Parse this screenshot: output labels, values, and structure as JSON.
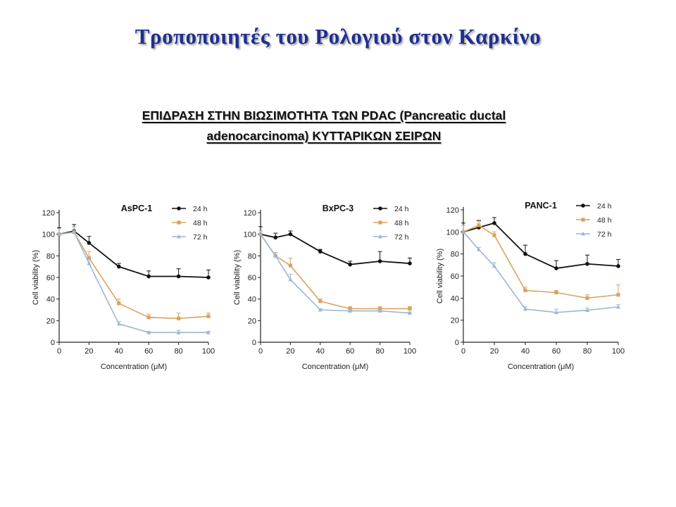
{
  "slide": {
    "title": "Τροποποιητές του Ρολογιού στον Καρκίνο",
    "subtitle_line1": "ΕΠΙΔΡΑΣΗ ΣΤΗΝ ΒΙΩΣΙΜΟΤΗΤΑ ΤΩΝ PDAC (Pancreatic ductal",
    "subtitle_line2": "adenocarcinoma) ΚΥΤΤΑΡΙΚΩΝ ΣΕΙΡΩΝ"
  },
  "colors": {
    "24h": "#111111",
    "48h": "#d9a35f",
    "72h": "#9db6d4",
    "title": "#1f2f8f"
  },
  "chart_data": [
    {
      "type": "line",
      "title": "AsPC-1",
      "xlabel": "Concentration (μM)",
      "ylabel": "Cell viability (%)",
      "x": [
        0,
        10,
        20,
        40,
        60,
        80,
        100
      ],
      "xticks": [
        0,
        20,
        40,
        60,
        80,
        100
      ],
      "yticks": [
        0,
        20,
        40,
        60,
        80,
        100,
        120
      ],
      "xlim": [
        0,
        100
      ],
      "ylim": [
        0,
        120
      ],
      "legend_position": "top-right",
      "series": [
        {
          "name": "24 h",
          "marker": "circle",
          "values": [
            100,
            103,
            92,
            70,
            61,
            61,
            60
          ],
          "errors": [
            6,
            6,
            6,
            3,
            5,
            7,
            7
          ]
        },
        {
          "name": "48 h",
          "marker": "square",
          "values": [
            100,
            102,
            78,
            36,
            23,
            22,
            24
          ],
          "errors": [
            5,
            5,
            6,
            4,
            3,
            5,
            3
          ]
        },
        {
          "name": "72 h",
          "marker": "triangle",
          "values": [
            100,
            102,
            73,
            17,
            9,
            9,
            9
          ],
          "errors": [
            5,
            5,
            5,
            2,
            1,
            2,
            1
          ]
        }
      ]
    },
    {
      "type": "line",
      "title": "BxPC-3",
      "xlabel": "Concentration (μM)",
      "ylabel": "Cell viability (%)",
      "x": [
        0,
        10,
        20,
        40,
        60,
        80,
        100
      ],
      "xticks": [
        0,
        20,
        40,
        60,
        80,
        100
      ],
      "yticks": [
        0,
        20,
        40,
        60,
        80,
        100,
        120
      ],
      "xlim": [
        0,
        100
      ],
      "ylim": [
        0,
        120
      ],
      "legend_position": "top-right",
      "series": [
        {
          "name": "24 h",
          "marker": "circle",
          "values": [
            100,
            97,
            100,
            84,
            72,
            75,
            73
          ],
          "errors": [
            7,
            4,
            3,
            2,
            3,
            9,
            5
          ]
        },
        {
          "name": "48 h",
          "marker": "square",
          "values": [
            100,
            80,
            71,
            38,
            31,
            31,
            31
          ],
          "errors": [
            3,
            3,
            7,
            2,
            2,
            2,
            2
          ]
        },
        {
          "name": "72 h",
          "marker": "triangle",
          "values": [
            100,
            80,
            58,
            30,
            29,
            29,
            27
          ],
          "errors": [
            3,
            3,
            5,
            1,
            1,
            1,
            1
          ]
        }
      ]
    },
    {
      "type": "line",
      "title": "PANC-1",
      "xlabel": "Concentration (μM)",
      "ylabel": "Cell viability (%)",
      "x": [
        0,
        10,
        20,
        40,
        60,
        80,
        100
      ],
      "xticks": [
        0,
        20,
        40,
        60,
        80,
        100
      ],
      "yticks": [
        0,
        20,
        40,
        60,
        80,
        100,
        120
      ],
      "xlim": [
        0,
        100
      ],
      "ylim": [
        0,
        120
      ],
      "legend_position": "top-right",
      "series": [
        {
          "name": "24 h",
          "marker": "circle",
          "values": [
            100,
            104,
            108,
            80,
            67,
            71,
            69
          ],
          "errors": [
            8,
            6,
            5,
            8,
            7,
            8,
            6
          ]
        },
        {
          "name": "48 h",
          "marker": "square",
          "values": [
            100,
            106,
            97,
            47,
            45,
            40,
            43
          ],
          "errors": [
            6,
            5,
            3,
            3,
            2,
            3,
            9
          ]
        },
        {
          "name": "72 h",
          "marker": "triangle",
          "values": [
            100,
            84,
            69,
            30,
            27,
            29,
            32
          ],
          "errors": [
            6,
            2,
            3,
            2,
            3,
            2,
            2
          ]
        }
      ]
    }
  ]
}
